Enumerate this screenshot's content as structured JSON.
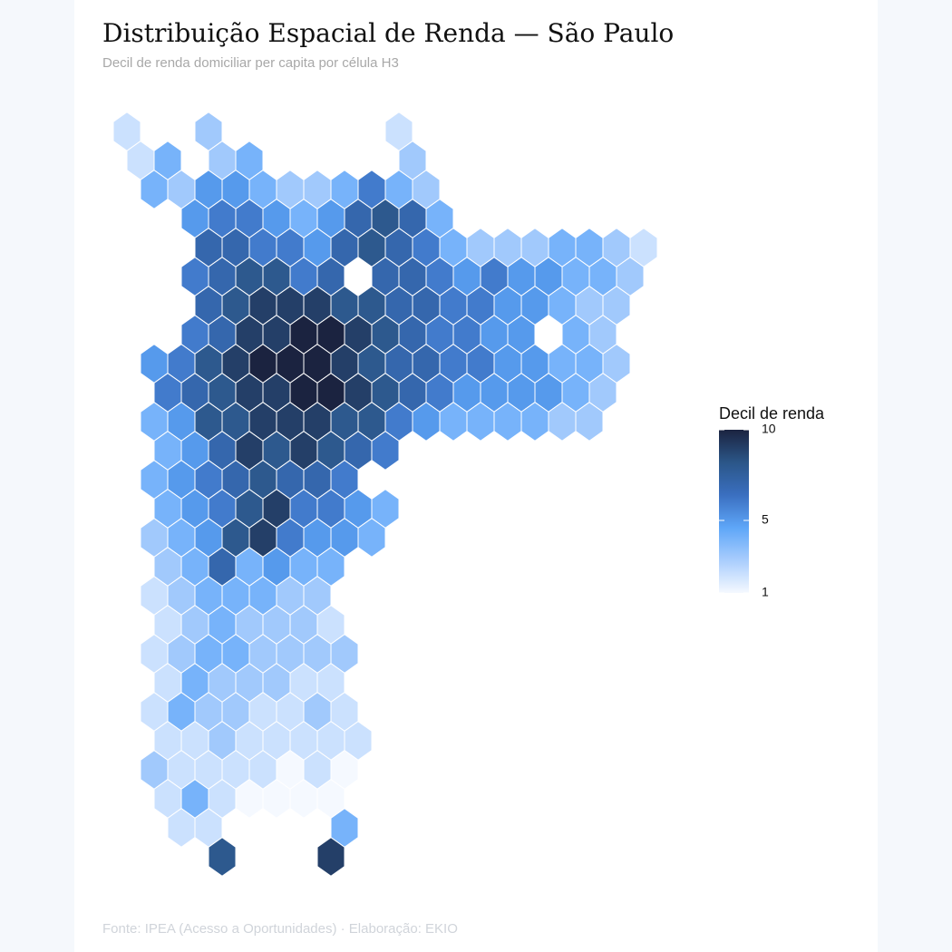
{
  "header": {
    "title": "Distribuição Espacial de Renda — São Paulo",
    "subtitle": "Decil de renda domiciliar per capita por célula H3"
  },
  "map": {
    "legend_title": "Decil de renda",
    "clim": [
      1,
      10
    ],
    "ticks": [
      1,
      5,
      10
    ],
    "colors": [
      "#f5f9ff",
      "#a9cdfd",
      "#5ea6f8",
      "#3a6fc0",
      "#2b5688",
      "#1b2340"
    ],
    "cells": [
      [
        2,
        null,
        null,
        3,
        null,
        null,
        null,
        null,
        null,
        null,
        2
      ],
      [
        2,
        4,
        null,
        3,
        4,
        null,
        null,
        null,
        null,
        null,
        3
      ],
      [
        null,
        4,
        3,
        5,
        5,
        4,
        3,
        3,
        4,
        6,
        4,
        3
      ],
      [
        null,
        null,
        5,
        6,
        6,
        5,
        4,
        5,
        7,
        8,
        7,
        4
      ],
      [
        null,
        null,
        null,
        7,
        7,
        6,
        6,
        5,
        7,
        8,
        7,
        6,
        4,
        3,
        3,
        3,
        4,
        4,
        3,
        2
      ],
      [
        null,
        null,
        6,
        7,
        8,
        8,
        6,
        7,
        null,
        7,
        7,
        6,
        5,
        6,
        5,
        5,
        4,
        4,
        3
      ],
      [
        null,
        null,
        null,
        7,
        8,
        9,
        9,
        9,
        8,
        8,
        7,
        7,
        6,
        6,
        5,
        5,
        4,
        3,
        3
      ],
      [
        null,
        null,
        6,
        7,
        9,
        9,
        10,
        10,
        9,
        8,
        7,
        6,
        6,
        5,
        5,
        null,
        4,
        3
      ],
      [
        null,
        5,
        6,
        8,
        9,
        10,
        10,
        10,
        9,
        8,
        7,
        7,
        6,
        6,
        5,
        5,
        4,
        4,
        3
      ],
      [
        null,
        6,
        7,
        8,
        9,
        9,
        10,
        10,
        9,
        8,
        7,
        6,
        5,
        5,
        5,
        5,
        4,
        3
      ],
      [
        null,
        4,
        5,
        8,
        8,
        9,
        9,
        9,
        8,
        8,
        6,
        5,
        4,
        4,
        4,
        4,
        3,
        3
      ],
      [
        null,
        4,
        5,
        7,
        9,
        8,
        9,
        8,
        7,
        6
      ],
      [
        null,
        4,
        5,
        6,
        7,
        8,
        7,
        7,
        6
      ],
      [
        null,
        4,
        5,
        6,
        8,
        9,
        6,
        6,
        5,
        4
      ],
      [
        null,
        3,
        4,
        5,
        8,
        9,
        6,
        5,
        5,
        4
      ],
      [
        null,
        3,
        4,
        7,
        4,
        5,
        4,
        4
      ],
      [
        null,
        2,
        3,
        4,
        4,
        4,
        3,
        3
      ],
      [
        null,
        2,
        3,
        4,
        3,
        3,
        3,
        2
      ],
      [
        null,
        2,
        3,
        4,
        4,
        3,
        3,
        3,
        3
      ],
      [
        null,
        2,
        4,
        3,
        3,
        3,
        2,
        2
      ],
      [
        null,
        2,
        4,
        3,
        3,
        2,
        2,
        3,
        2
      ],
      [
        null,
        2,
        2,
        3,
        2,
        2,
        2,
        2,
        2
      ],
      [
        null,
        3,
        2,
        2,
        2,
        2,
        1,
        2,
        1
      ],
      [
        null,
        2,
        4,
        2,
        1,
        1,
        1,
        1
      ],
      [
        null,
        null,
        2,
        2,
        null,
        null,
        null,
        null,
        4
      ],
      [
        null,
        null,
        null,
        8,
        null,
        null,
        null,
        9
      ]
    ]
  },
  "footer": {
    "source": "Fonte: IPEA (Acesso a Oportunidades) · Elaboração: EKIO"
  }
}
